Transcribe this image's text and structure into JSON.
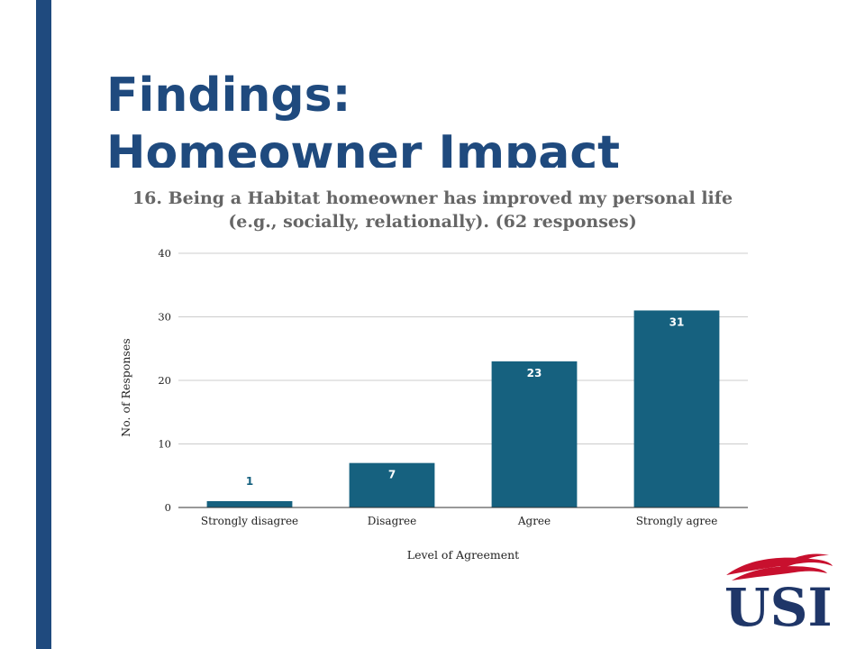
{
  "slide": {
    "title_line1": "Findings:",
    "title_line2": "Homeowner Impact",
    "accent_color": "#1f4a7e"
  },
  "chart_data": {
    "type": "bar",
    "title_line1": "16. Being a Habitat homeowner has improved my personal life",
    "title_line2": "(e.g., socially, relationally).  (62 responses)",
    "categories": [
      "Strongly disagree",
      "Disagree",
      "Agree",
      "Strongly agree"
    ],
    "values": [
      1,
      7,
      23,
      31
    ],
    "data_labels": [
      "1",
      "7",
      "23",
      "31"
    ],
    "xlabel": "Level of Agreement",
    "ylabel": "No. of Responses",
    "ylim": [
      0,
      40
    ],
    "yticks": [
      0,
      10,
      20,
      30,
      40
    ],
    "grid": true,
    "legend": "none",
    "bar_color": "#16617f"
  },
  "logo": {
    "text": "USI",
    "name": "usi-logo",
    "colors": {
      "navy": "#1f3668",
      "red": "#c8102e"
    }
  }
}
